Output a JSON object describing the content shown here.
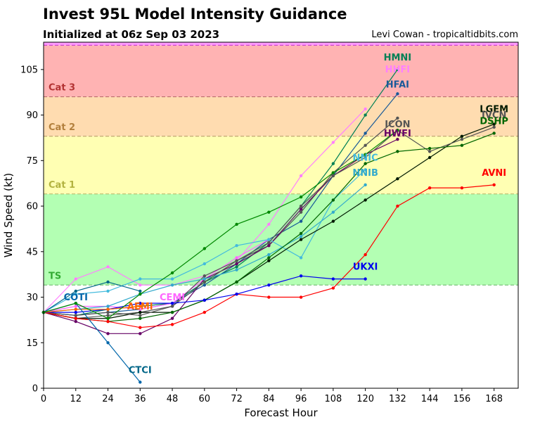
{
  "chart_data": {
    "type": "line",
    "title": "Invest 95L Model Intensity Guidance",
    "subtitle": "Initialized at 06z Sep 03 2023",
    "credit": "Levi Cowan - tropicaltidbits.com",
    "xlabel": "Forecast Hour",
    "ylabel": "Wind Speed (kt)",
    "xlim": [
      0,
      177
    ],
    "ylim": [
      0,
      114
    ],
    "xticks": [
      0,
      12,
      24,
      36,
      48,
      60,
      72,
      84,
      96,
      108,
      120,
      132,
      144,
      156,
      168
    ],
    "yticks": [
      0,
      15,
      30,
      45,
      60,
      75,
      90,
      105
    ],
    "bands": [
      {
        "name": "TS",
        "from": 34,
        "to": 64,
        "color": "#b3ffb3",
        "edge": "#66b366",
        "label_color": "#33aa33"
      },
      {
        "name": "Cat 1",
        "from": 64,
        "to": 83,
        "color": "#ffffb3",
        "edge": "#b3b366",
        "label_color": "#b3b340"
      },
      {
        "name": "Cat 2",
        "from": 83,
        "to": 96,
        "color": "#ffdcb0",
        "edge": "#b39966",
        "label_color": "#b3803d"
      },
      {
        "name": "Cat 3",
        "from": 96,
        "to": 113,
        "color": "#ffb3b3",
        "edge": "#b36666",
        "label_color": "#b33333"
      },
      {
        "name": "",
        "from": 113,
        "to": 114,
        "color": "#ff99ff",
        "edge": "#cc44cc",
        "label_color": "#cc44cc"
      }
    ],
    "series": [
      {
        "name": "HMNI",
        "color": "#008055",
        "label_at": [
          132,
          108
        ],
        "x": [
          0,
          12,
          24,
          36,
          48,
          60,
          72,
          84,
          96,
          108,
          120,
          132
        ],
        "values": [
          25,
          24,
          26,
          27,
          28,
          35,
          40,
          48,
          60,
          74,
          90,
          105
        ]
      },
      {
        "name": "HHFI",
        "color": "#ff80ff",
        "label_at": [
          132,
          104
        ],
        "x": [
          0,
          12,
          24,
          36,
          48,
          60,
          72,
          84,
          96,
          108,
          120
        ],
        "values": [
          25,
          36,
          40,
          34,
          34,
          37,
          42,
          54,
          70,
          81,
          92
        ]
      },
      {
        "name": "HFAI",
        "color": "#1a5a99",
        "label_at": [
          132,
          99
        ],
        "x": [
          0,
          12,
          24,
          36,
          48,
          60,
          72,
          84,
          96,
          108,
          120,
          132
        ],
        "values": [
          25,
          24,
          25,
          26,
          28,
          34,
          41,
          49,
          55,
          70,
          84,
          97
        ]
      },
      {
        "name": "CEMI",
        "color": "#ff66ff",
        "label_at": [
          48,
          29
        ],
        "x": [
          0,
          12,
          24,
          36,
          48,
          60,
          72,
          84
        ],
        "values": [
          25,
          27,
          27,
          26,
          28,
          36,
          43,
          49
        ]
      },
      {
        "name": "ICON",
        "color": "#555555",
        "label_at": [
          132,
          86
        ],
        "x": [
          0,
          12,
          24,
          36,
          48,
          60,
          72,
          84,
          96,
          108,
          120,
          132
        ],
        "values": [
          25,
          23,
          24,
          25,
          27,
          37,
          42,
          47,
          58,
          71,
          80,
          89
        ]
      },
      {
        "name": "HWFI",
        "color": "#660066",
        "label_at": [
          132,
          83
        ],
        "x": [
          0,
          12,
          24,
          36,
          48,
          60,
          72,
          84,
          96,
          108,
          120,
          132
        ],
        "values": [
          25,
          22,
          18,
          18,
          23,
          36,
          41,
          47,
          59,
          70,
          77,
          82
        ]
      },
      {
        "name": "NNIC",
        "color": "#44bbdd",
        "label_at": [
          120,
          75
        ],
        "x": [
          0,
          12,
          24,
          36,
          48,
          60,
          72,
          84,
          96,
          108,
          120
        ],
        "values": [
          25,
          31,
          32,
          36,
          36,
          41,
          47,
          49,
          43,
          62,
          72
        ]
      },
      {
        "name": "NNIB",
        "color": "#33aacc",
        "label_at": [
          120,
          70
        ],
        "x": [
          0,
          12,
          24,
          36,
          48,
          60,
          72,
          84,
          96,
          108,
          120
        ],
        "values": [
          25,
          26,
          27,
          31,
          34,
          36,
          39,
          44,
          50,
          58,
          67
        ]
      },
      {
        "name": "LGEM",
        "color": "#001a00",
        "label_at": [
          168,
          91
        ],
        "x": [
          0,
          12,
          24,
          36,
          48,
          60,
          72,
          84,
          96,
          108,
          120,
          132,
          144,
          156,
          168
        ],
        "values": [
          25,
          23,
          23,
          25,
          25,
          29,
          35,
          42,
          49,
          55,
          62,
          69,
          76,
          83,
          87
        ]
      },
      {
        "name": "IVCN",
        "color": "#555555",
        "label_at": [
          168,
          89
        ],
        "x": [
          0,
          12,
          24,
          36,
          48,
          60,
          72,
          84,
          96,
          108,
          120,
          132,
          144,
          156,
          168
        ],
        "values": [
          25,
          24,
          25,
          24,
          27,
          35,
          42,
          48,
          60,
          70,
          76,
          85,
          78,
          82,
          86
        ]
      },
      {
        "name": "DSHP",
        "color": "#006600",
        "label_at": [
          168,
          87
        ],
        "x": [
          0,
          12,
          24,
          36,
          48,
          60,
          72,
          84,
          96,
          108,
          120,
          132,
          144,
          156,
          168
        ],
        "values": [
          25,
          23,
          22,
          23,
          25,
          29,
          35,
          43,
          51,
          62,
          74,
          78,
          79,
          80,
          84
        ]
      },
      {
        "name": "AVNI",
        "color": "#ff0000",
        "label_at": [
          168,
          70
        ],
        "x": [
          0,
          12,
          24,
          36,
          48,
          60,
          72,
          84,
          96,
          108,
          120,
          132,
          144,
          156,
          168
        ],
        "values": [
          25,
          23,
          22,
          20,
          21,
          25,
          31,
          30,
          30,
          33,
          44,
          60,
          66,
          66,
          67
        ]
      },
      {
        "name": "UKXI",
        "color": "#0000ee",
        "label_at": [
          120,
          39
        ],
        "x": [
          0,
          12,
          24,
          36,
          48,
          60,
          72,
          84,
          96,
          108,
          120
        ],
        "values": [
          25,
          25,
          26,
          28,
          28,
          29,
          31,
          34,
          37,
          36,
          36
        ]
      },
      {
        "name": "AEMI",
        "color": "#ff6600",
        "label_at": [
          36,
          26
        ],
        "x": [
          0,
          12,
          24,
          36
        ],
        "values": [
          25,
          26,
          26,
          27
        ]
      },
      {
        "name": "COTI",
        "color": "#0066aa",
        "label_at": [
          12,
          29
        ],
        "x": [
          0,
          12,
          24,
          36
        ],
        "values": [
          25,
          28,
          15,
          2
        ]
      },
      {
        "name": "CTCI",
        "color": "#006688",
        "label_at": [
          36,
          5
        ],
        "x": [
          0,
          12,
          24,
          36
        ],
        "values": [
          25,
          32,
          35,
          32
        ]
      },
      {
        "name": "",
        "color": "#008800",
        "label_at": null,
        "x": [
          0,
          12,
          24,
          36,
          48,
          60,
          72,
          84,
          96,
          108,
          120,
          132
        ],
        "values": [
          25,
          28,
          23,
          31,
          38,
          46,
          54,
          58,
          63,
          71,
          77,
          85
        ]
      }
    ]
  }
}
